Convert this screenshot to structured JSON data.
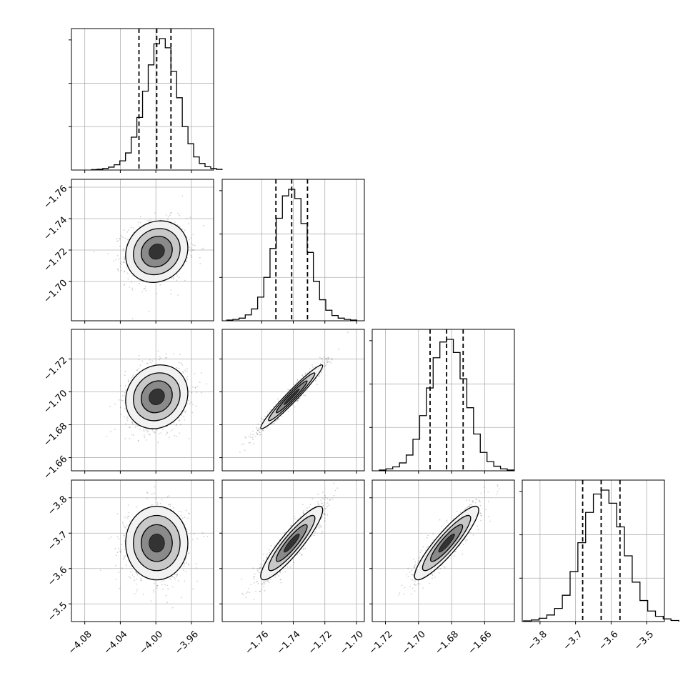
{
  "chart_data": {
    "type": "corner",
    "parameters": 4,
    "ranges": [
      [
        -4.095,
        -3.935
      ],
      [
        -1.785,
        -1.695
      ],
      [
        -1.728,
        -1.642
      ],
      [
        -3.85,
        -3.45
      ]
    ],
    "ticks": {
      "x": [
        [
          "−4.08",
          "−4.04",
          "−4.00",
          "−3.96"
        ],
        [
          "−1.76",
          "−1.74",
          "−1.72",
          "−1.70"
        ],
        [
          "−1.72",
          "−1.70",
          "−1.68",
          "−1.66"
        ],
        [
          "−3.8",
          "−3.7",
          "−3.6",
          "−3.5"
        ]
      ],
      "y": [
        [],
        [
          "−1.70",
          "−1.72",
          "−1.74",
          "−1.76"
        ],
        [
          "−1.66",
          "−1.68",
          "−1.70",
          "−1.72"
        ],
        [
          "−3.5",
          "−3.6",
          "−3.7",
          "−3.8"
        ]
      ]
    },
    "tick_values": [
      [
        -4.08,
        -4.04,
        -4.0,
        -3.96
      ],
      [
        -1.76,
        -1.74,
        -1.72,
        -1.7
      ],
      [
        -1.72,
        -1.7,
        -1.68,
        -1.66
      ],
      [
        -3.8,
        -3.7,
        -3.6,
        -3.5
      ]
    ],
    "quantiles": [
      [
        -4.019,
        -3.999,
        -3.983
      ],
      [
        -1.751,
        -1.741,
        -1.731
      ],
      [
        -1.693,
        -1.683,
        -1.673
      ],
      [
        -3.68,
        -3.628,
        -3.575
      ]
    ],
    "medians": [
      -3.999,
      -1.741,
      -1.683,
      -3.628
    ],
    "sigmas": [
      0.0175,
      0.0098,
      0.0097,
      0.052
    ],
    "correlations": [
      [
        1,
        0.12,
        0.12,
        0.0
      ],
      [
        0.12,
        1,
        0.97,
        0.9
      ],
      [
        0.12,
        0.97,
        1,
        0.9
      ],
      [
        0.0,
        0.9,
        0.9,
        1
      ]
    ],
    "histograms": [
      [
        0.003,
        0.006,
        0.012,
        0.022,
        0.04,
        0.07,
        0.13,
        0.25,
        0.4,
        0.6,
        0.8,
        0.96,
        1.0,
        0.93,
        0.75,
        0.55,
        0.33,
        0.2,
        0.1,
        0.05,
        0.025,
        0.012,
        0.005
      ],
      [
        0.005,
        0.01,
        0.02,
        0.045,
        0.09,
        0.18,
        0.33,
        0.55,
        0.78,
        0.95,
        1.0,
        0.93,
        0.74,
        0.52,
        0.3,
        0.16,
        0.08,
        0.04,
        0.02,
        0.01,
        0.005
      ],
      [
        0.006,
        0.015,
        0.03,
        0.06,
        0.12,
        0.24,
        0.42,
        0.63,
        0.86,
        0.98,
        1.0,
        0.9,
        0.7,
        0.48,
        0.28,
        0.14,
        0.07,
        0.035,
        0.015,
        0.006
      ],
      [
        0.005,
        0.012,
        0.025,
        0.05,
        0.1,
        0.2,
        0.38,
        0.6,
        0.83,
        0.97,
        1.0,
        0.9,
        0.72,
        0.5,
        0.3,
        0.16,
        0.08,
        0.04,
        0.02,
        0.008
      ]
    ],
    "grid": true,
    "legend": "none"
  }
}
